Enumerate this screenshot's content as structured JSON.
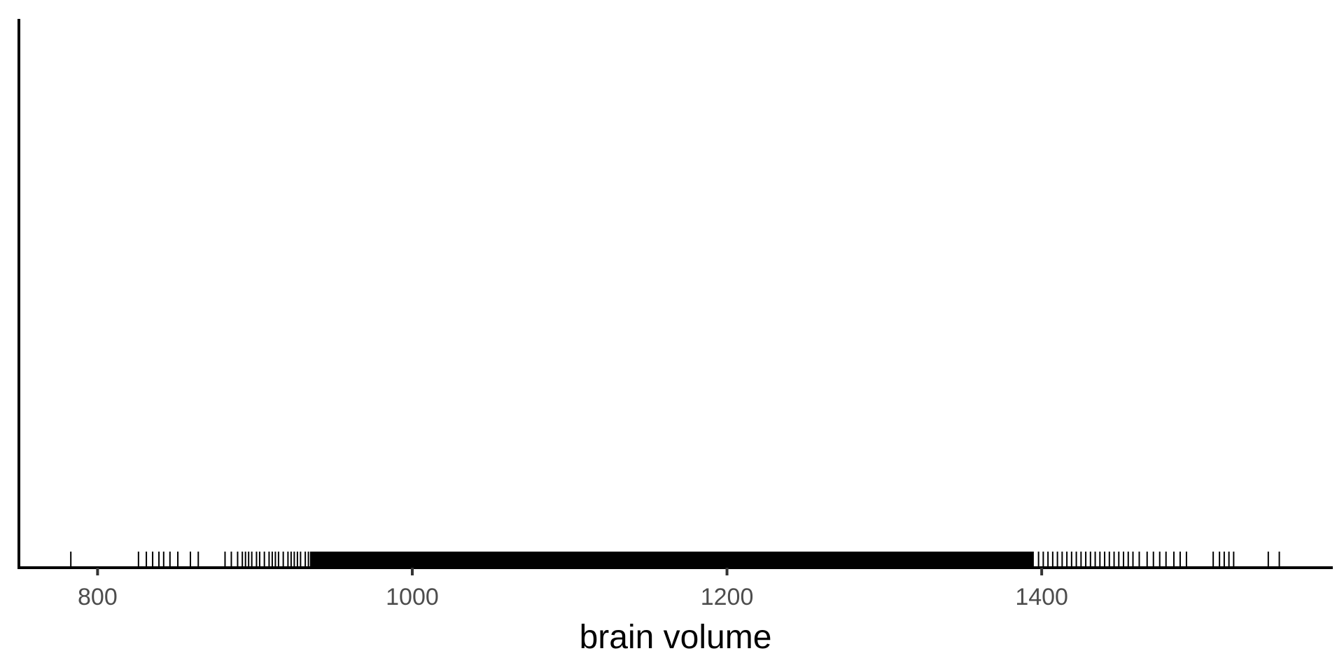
{
  "chart_data": {
    "type": "rug",
    "title": "",
    "xlabel": "brain volume",
    "ylabel": "",
    "xlim": [
      750,
      1585
    ],
    "x_ticks": [
      800,
      1000,
      1200,
      1400
    ],
    "x_tick_labels": [
      "800",
      "1000",
      "1200",
      "1400"
    ],
    "grid": false,
    "legend": "none",
    "rug_color": "#000000",
    "axis_color": "#000000",
    "dense_range": [
      935,
      1395
    ],
    "x": [
      783,
      826,
      831,
      835,
      839,
      842,
      846,
      851,
      859,
      864,
      881,
      885,
      889,
      892,
      894,
      896,
      898,
      901,
      903,
      906,
      909,
      911,
      913,
      915,
      918,
      921,
      923,
      925,
      927,
      929,
      932,
      934,
      938,
      941,
      944,
      947,
      950,
      953,
      957,
      960,
      963,
      966,
      970,
      973,
      976,
      980,
      983,
      987,
      990,
      994,
      1398,
      1401,
      1404,
      1407,
      1410,
      1413,
      1416,
      1419,
      1422,
      1425,
      1428,
      1431,
      1434,
      1437,
      1440,
      1443,
      1446,
      1449,
      1452,
      1455,
      1458,
      1462,
      1467,
      1471,
      1475,
      1479,
      1484,
      1488,
      1492,
      1509,
      1513,
      1516,
      1519,
      1522,
      1544,
      1551
    ]
  }
}
